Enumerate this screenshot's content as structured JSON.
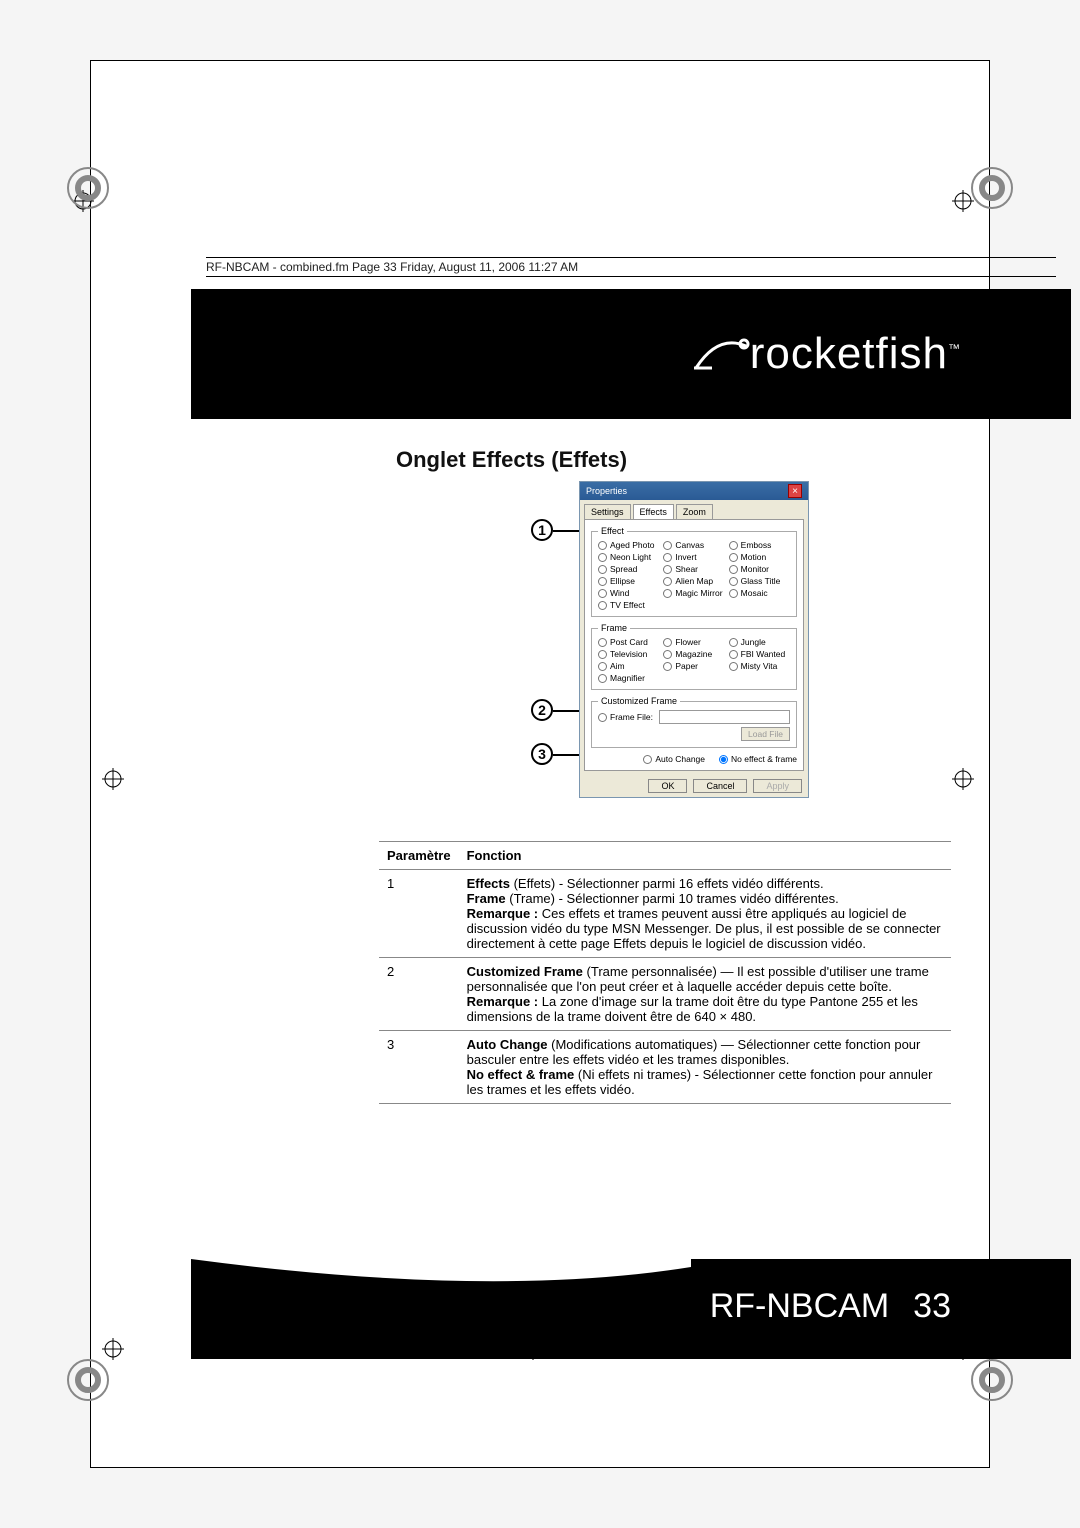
{
  "header_line": "RF-NBCAM - combined.fm  Page 33  Friday, August 11, 2006  11:27 AM",
  "brand_name": "rocketfish",
  "brand_tm": "™",
  "section_title": "Onglet Effects (Effets)",
  "dialog": {
    "title": "Properties",
    "tabs": [
      "Settings",
      "Effects",
      "Zoom"
    ],
    "active_tab": 1,
    "effect_legend": "Effect",
    "effects": [
      "Aged Photo",
      "Canvas",
      "Emboss",
      "Neon Light",
      "Invert",
      "Motion",
      "Spread",
      "Shear",
      "Monitor",
      "Ellipse",
      "Alien Map",
      "Glass Title",
      "Wind",
      "Magic Mirror",
      "Mosaic",
      "TV Effect"
    ],
    "frame_legend": "Frame",
    "frames": [
      "Post Card",
      "Flower",
      "Jungle",
      "Television",
      "Magazine",
      "FBI Wanted",
      "Aim",
      "Paper",
      "Misty Vita",
      "Magnifier"
    ],
    "custom_legend": "Customized Frame",
    "frame_file_label": "Frame File:",
    "load_btn": "Load File",
    "auto_change": "Auto Change",
    "no_effect": "No effect & frame",
    "ok": "OK",
    "cancel": "Cancel",
    "apply": "Apply"
  },
  "callouts": [
    "1",
    "2",
    "3"
  ],
  "table": {
    "headers": [
      "Paramètre",
      "Fonction"
    ],
    "rows": [
      {
        "num": "1",
        "html": "<b>Effects</b> (Effets) - Sélectionner parmi 16 effets vidéo différents.<br><b>Frame</b> (Trame) - Sélectionner parmi 10 trames vidéo différentes.<br><b>Remarque :</b> Ces effets et trames peuvent aussi être appliqués au logiciel de discussion vidéo du type MSN Messenger. De plus, il est possible de se connecter directement à cette page Effets depuis le logiciel de discussion vidéo."
      },
      {
        "num": "2",
        "html": "<b>Customized Frame</b> (Trame personnalisée) — Il est possible d'utiliser une trame personnalisée que l'on peut créer et à laquelle accéder depuis cette boîte.<br><b>Remarque :</b> La zone d'image sur la trame doit être du type Pantone 255 et les dimensions de la trame doivent être de 640 × 480."
      },
      {
        "num": "3",
        "html": "<b>Auto Change</b> (Modifications automatiques) — Sélectionner cette fonction pour basculer entre les effets vidéo et les trames disponibles.<br><b>No effect & frame</b> (Ni effets ni trames) - Sélectionner cette fonction pour annuler les trames et les effets vidéo."
      }
    ]
  },
  "footer": {
    "model": "RF-NBCAM",
    "page": "33"
  },
  "colors": {
    "black": "#000000",
    "page_bg": "#ffffff",
    "dialog_bg": "#ece9d8",
    "title_grad_top": "#3a6ea5",
    "title_grad_bot": "#2a5a95",
    "border_gray": "#888888"
  }
}
